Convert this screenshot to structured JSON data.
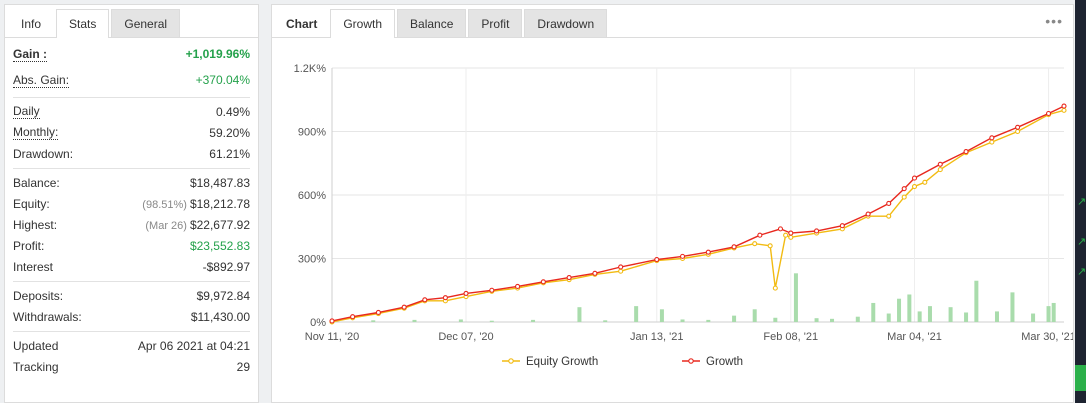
{
  "stats_tabs": [
    "Info",
    "Stats",
    "General"
  ],
  "stats_active_tab": "Stats",
  "stats": {
    "gain": {
      "label": "Gain :",
      "value": "+1,019.96%"
    },
    "abs_gain": {
      "label": "Abs. Gain:",
      "value": "+370.04%"
    },
    "daily": {
      "label": "Daily",
      "value": "0.49%"
    },
    "monthly": {
      "label": "Monthly:",
      "value": "59.20%"
    },
    "drawdown": {
      "label": "Drawdown:",
      "value": "61.21%"
    },
    "balance": {
      "label": "Balance:",
      "value": "$18,487.83"
    },
    "equity": {
      "label": "Equity:",
      "note": "(98.51%)",
      "value": "$18,212.78"
    },
    "highest": {
      "label": "Highest:",
      "note": "(Mar 26)",
      "value": "$22,677.92"
    },
    "profit": {
      "label": "Profit:",
      "value": "$23,552.83"
    },
    "interest": {
      "label": "Interest",
      "value": "-$892.97"
    },
    "deposits": {
      "label": "Deposits:",
      "value": "$9,972.84"
    },
    "withdrawals": {
      "label": "Withdrawals:",
      "value": "$11,430.00"
    },
    "updated": {
      "label": "Updated",
      "value": "Apr 06 2021 at 04:21"
    },
    "tracking": {
      "label": "Tracking",
      "value": "29"
    }
  },
  "chart_tabs": [
    "Chart",
    "Growth",
    "Balance",
    "Profit",
    "Drawdown"
  ],
  "chart_active_tab": "Growth",
  "menu_icon": "ellipsis-icon",
  "colors": {
    "growth": "#e8281e",
    "equity": "#f2bb12",
    "bars": "#a9dcac",
    "positive": "#24a14b"
  },
  "chart_data": {
    "type": "line",
    "title": "",
    "xlabel": "",
    "ylabel": "",
    "y_ticks": [
      "0%",
      "300%",
      "600%",
      "900%",
      "1.2K%"
    ],
    "y_tick_values": [
      0,
      300,
      600,
      900,
      1200
    ],
    "ylim": [
      0,
      1200
    ],
    "x_ticks": [
      "Nov 11, '20",
      "Dec 07, '20",
      "Jan 13, '21",
      "Feb 08, '21",
      "Mar 04, '21",
      "Mar 30, '21"
    ],
    "x_tick_dates": [
      "2020-11-11",
      "2020-12-07",
      "2021-01-13",
      "2021-02-08",
      "2021-03-04",
      "2021-03-30"
    ],
    "xlim": [
      "2020-11-11",
      "2021-04-02"
    ],
    "grid": true,
    "legend_position": "bottom",
    "series": [
      {
        "name": "Growth",
        "points": [
          [
            "2020-11-11",
            5
          ],
          [
            "2020-11-15",
            25
          ],
          [
            "2020-11-20",
            45
          ],
          [
            "2020-11-25",
            70
          ],
          [
            "2020-11-29",
            105
          ],
          [
            "2020-12-03",
            115
          ],
          [
            "2020-12-07",
            135
          ],
          [
            "2020-12-12",
            150
          ],
          [
            "2020-12-17",
            168
          ],
          [
            "2020-12-22",
            190
          ],
          [
            "2020-12-27",
            210
          ],
          [
            "2021-01-01",
            230
          ],
          [
            "2021-01-06",
            260
          ],
          [
            "2021-01-13",
            295
          ],
          [
            "2021-01-18",
            310
          ],
          [
            "2021-01-23",
            330
          ],
          [
            "2021-01-28",
            355
          ],
          [
            "2021-02-02",
            410
          ],
          [
            "2021-02-06",
            440
          ],
          [
            "2021-02-08",
            420
          ],
          [
            "2021-02-13",
            430
          ],
          [
            "2021-02-18",
            455
          ],
          [
            "2021-02-23",
            510
          ],
          [
            "2021-02-27",
            560
          ],
          [
            "2021-03-02",
            630
          ],
          [
            "2021-03-04",
            680
          ],
          [
            "2021-03-09",
            745
          ],
          [
            "2021-03-14",
            805
          ],
          [
            "2021-03-19",
            870
          ],
          [
            "2021-03-24",
            920
          ],
          [
            "2021-03-30",
            985
          ],
          [
            "2021-04-02",
            1020
          ]
        ]
      },
      {
        "name": "Equity Growth",
        "points": [
          [
            "2020-11-11",
            0
          ],
          [
            "2020-11-15",
            20
          ],
          [
            "2020-11-20",
            40
          ],
          [
            "2020-11-25",
            65
          ],
          [
            "2020-11-29",
            100
          ],
          [
            "2020-12-03",
            100
          ],
          [
            "2020-12-07",
            120
          ],
          [
            "2020-12-12",
            145
          ],
          [
            "2020-12-17",
            160
          ],
          [
            "2020-12-22",
            185
          ],
          [
            "2020-12-27",
            200
          ],
          [
            "2021-01-01",
            225
          ],
          [
            "2021-01-06",
            240
          ],
          [
            "2021-01-13",
            290
          ],
          [
            "2021-01-18",
            300
          ],
          [
            "2021-01-23",
            320
          ],
          [
            "2021-01-28",
            350
          ],
          [
            "2021-02-01",
            370
          ],
          [
            "2021-02-04",
            360
          ],
          [
            "2021-02-05",
            160
          ],
          [
            "2021-02-07",
            410
          ],
          [
            "2021-02-08",
            400
          ],
          [
            "2021-02-13",
            420
          ],
          [
            "2021-02-18",
            440
          ],
          [
            "2021-02-23",
            500
          ],
          [
            "2021-02-27",
            500
          ],
          [
            "2021-03-02",
            590
          ],
          [
            "2021-03-04",
            640
          ],
          [
            "2021-03-06",
            660
          ],
          [
            "2021-03-09",
            720
          ],
          [
            "2021-03-14",
            800
          ],
          [
            "2021-03-19",
            850
          ],
          [
            "2021-03-24",
            900
          ],
          [
            "2021-03-30",
            980
          ],
          [
            "2021-04-02",
            1000
          ]
        ]
      }
    ],
    "bars": [
      [
        "2020-11-19",
        8
      ],
      [
        "2020-11-27",
        10
      ],
      [
        "2020-12-06",
        12
      ],
      [
        "2020-12-12",
        6
      ],
      [
        "2020-12-20",
        10
      ],
      [
        "2020-12-29",
        70
      ],
      [
        "2021-01-03",
        8
      ],
      [
        "2021-01-09",
        75
      ],
      [
        "2021-01-14",
        60
      ],
      [
        "2021-01-18",
        12
      ],
      [
        "2021-01-23",
        10
      ],
      [
        "2021-01-28",
        30
      ],
      [
        "2021-02-01",
        60
      ],
      [
        "2021-02-05",
        20
      ],
      [
        "2021-02-09",
        230
      ],
      [
        "2021-02-13",
        18
      ],
      [
        "2021-02-16",
        15
      ],
      [
        "2021-02-21",
        25
      ],
      [
        "2021-02-24",
        90
      ],
      [
        "2021-02-27",
        40
      ],
      [
        "2021-03-01",
        110
      ],
      [
        "2021-03-03",
        130
      ],
      [
        "2021-03-05",
        50
      ],
      [
        "2021-03-07",
        75
      ],
      [
        "2021-03-11",
        70
      ],
      [
        "2021-03-14",
        45
      ],
      [
        "2021-03-16",
        195
      ],
      [
        "2021-03-20",
        50
      ],
      [
        "2021-03-23",
        140
      ],
      [
        "2021-03-27",
        40
      ],
      [
        "2021-03-30",
        75
      ],
      [
        "2021-03-31",
        90
      ]
    ]
  }
}
